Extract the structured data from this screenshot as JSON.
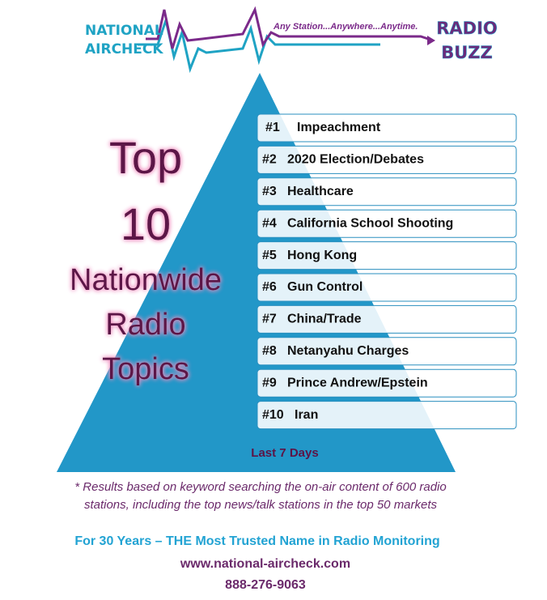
{
  "header": {
    "logo_line1": "NATIONAL",
    "logo_line2": "AIRCHECK",
    "tagline": "Any Station...Anywhere...Anytime.",
    "badge_line1": "RADIO",
    "badge_line2": "BUZZ"
  },
  "heading": [
    "Top",
    "10",
    "Nationwide",
    "Radio",
    "Topics"
  ],
  "topics": [
    {
      "rank": "#1",
      "name": "Impeachment"
    },
    {
      "rank": "#2",
      "name": "2020 Election/Debates"
    },
    {
      "rank": "#3",
      "name": "Healthcare"
    },
    {
      "rank": "#4",
      "name": "California School Shooting"
    },
    {
      "rank": "#5",
      "name": "Hong Kong"
    },
    {
      "rank": "#6",
      "name": "Gun Control"
    },
    {
      "rank": "#7",
      "name": "China/Trade"
    },
    {
      "rank": "#8",
      "name": "Netanyahu Charges"
    },
    {
      "rank": "#9",
      "name": "Prince Andrew/Epstein"
    },
    {
      "rank": "#10",
      "name": "Iran"
    }
  ],
  "period": "Last 7 Days",
  "footnote": [
    "* Results based on keyword searching the on-air content of 600 radio",
    "stations, including the top news/talk stations in the top 50 markets"
  ],
  "footer": {
    "slogan": "For 30 Years – THE Most Trusted Name in Radio Monitoring",
    "url": "www.national-aircheck.com",
    "phone": "888-276-9063"
  }
}
